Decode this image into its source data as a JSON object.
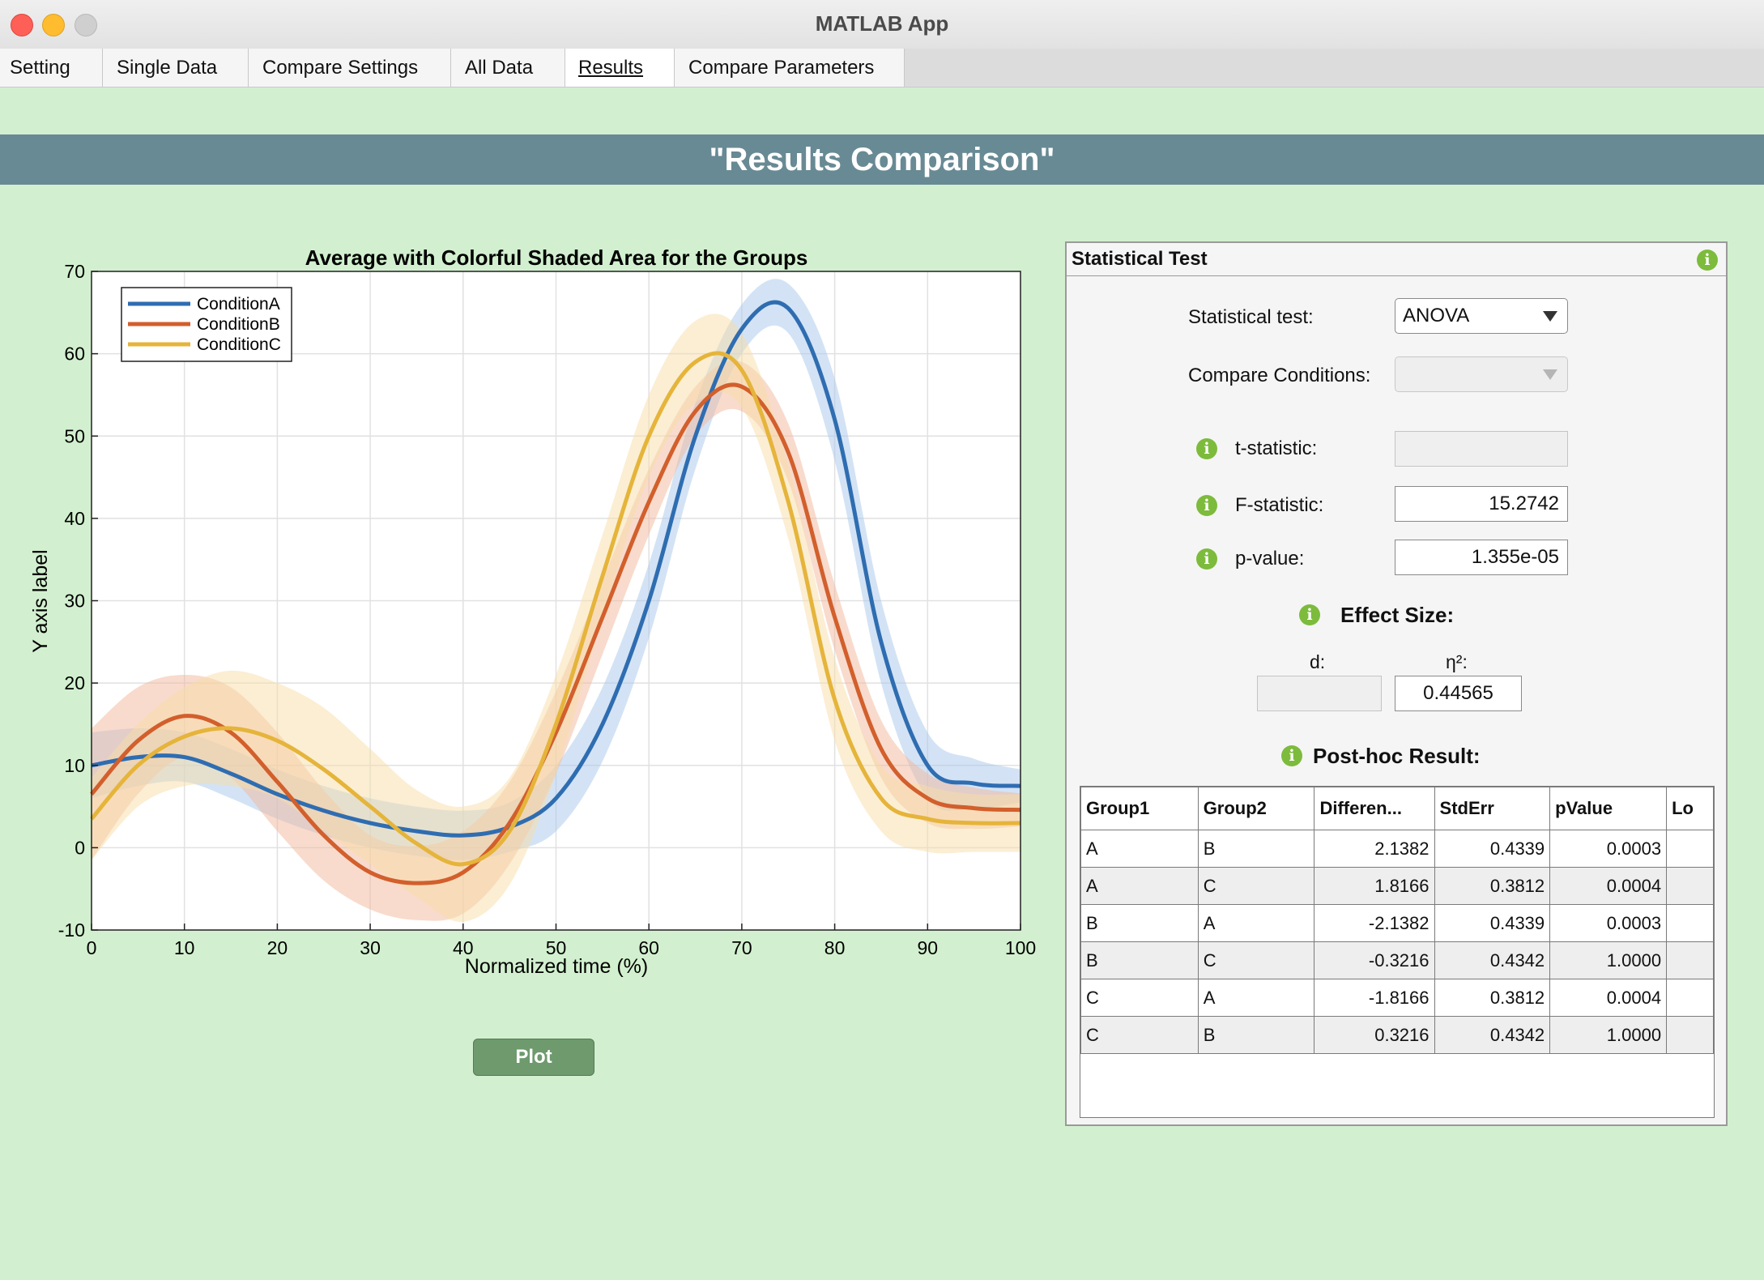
{
  "window": {
    "title": "MATLAB App"
  },
  "tabs": [
    "Setting",
    "Single Data",
    "Compare Settings",
    "All Data",
    "Results",
    "Compare Parameters"
  ],
  "active_tab": "Results",
  "banner": {
    "title": "\"Results Comparison\""
  },
  "chart_data": {
    "type": "line",
    "title": "Average with Colorful Shaded Area for the Groups",
    "xlabel": "Normalized time (%)",
    "ylabel": "Y axis label",
    "xlim": [
      0,
      100
    ],
    "ylim": [
      -10,
      70
    ],
    "xticks": [
      0,
      10,
      20,
      30,
      40,
      50,
      60,
      70,
      80,
      90,
      100
    ],
    "yticks": [
      -10,
      0,
      10,
      20,
      30,
      40,
      50,
      60,
      70
    ],
    "grid": true,
    "legend_position": "top-left",
    "x": [
      0,
      5,
      10,
      15,
      20,
      25,
      30,
      35,
      40,
      45,
      50,
      55,
      60,
      65,
      70,
      75,
      80,
      85,
      90,
      95,
      100
    ],
    "series": [
      {
        "name": "ConditionA",
        "color": "#2f6db1",
        "band_color": "#a8c8ec",
        "values": [
          10,
          11,
          11,
          9,
          6.5,
          4.5,
          3,
          2,
          1.5,
          2.5,
          6,
          15,
          30,
          50,
          63,
          65.5,
          52,
          25,
          10,
          7.8,
          7.5
        ],
        "band_half_width": [
          4,
          3.5,
          3,
          3,
          3,
          3,
          3,
          3,
          3,
          3,
          4,
          4.5,
          4.5,
          4,
          3,
          3,
          5,
          5,
          4,
          3,
          2
        ]
      },
      {
        "name": "ConditionB",
        "color": "#d25f2c",
        "band_color": "#f2b89b",
        "values": [
          6.5,
          13,
          16,
          14,
          8,
          1.5,
          -3,
          -4.3,
          -3,
          3,
          14,
          28,
          42,
          53,
          56,
          48,
          28,
          12,
          6,
          4.8,
          4.6
        ],
        "band_half_width": [
          8,
          6.5,
          5,
          5.5,
          6,
          5.5,
          4.5,
          4.5,
          5,
          5,
          5,
          4.5,
          4,
          3,
          3,
          3.5,
          4,
          3.5,
          3,
          2.5,
          2
        ]
      },
      {
        "name": "ConditionC",
        "color": "#e5b43a",
        "band_color": "#f8dea8",
        "values": [
          3.5,
          10,
          13.5,
          14.5,
          13,
          9.5,
          5,
          0.5,
          -2,
          2,
          15,
          33,
          50,
          59,
          58,
          42,
          18,
          6,
          3.5,
          3,
          3
        ],
        "band_half_width": [
          5,
          5,
          6,
          7,
          7,
          7.5,
          7,
          6.5,
          7,
          6.5,
          6,
          5,
          5,
          5,
          4.5,
          4.5,
          5,
          4,
          4,
          3.5,
          3.5
        ]
      }
    ]
  },
  "plot_button": {
    "label": "Plot"
  },
  "stat_panel": {
    "title": "Statistical Test",
    "test_label": "Statistical test:",
    "test_value": "ANOVA",
    "compare_label": "Compare Conditions:",
    "compare_value": "",
    "t_label": "t-statistic:",
    "t_value": "",
    "f_label": "F-statistic:",
    "f_value": "15.2742",
    "p_label": "p-value:",
    "p_value": "1.355e-05",
    "effect_title": "Effect Size:",
    "d_label": "d:",
    "d_value": "",
    "eta_label": "η²:",
    "eta_value": "0.44565",
    "posthoc_title": "Post-hoc Result:"
  },
  "posthoc_table": {
    "columns": [
      "Group1",
      "Group2",
      "Differen...",
      "StdErr",
      "pValue",
      "Lo"
    ],
    "rows": [
      [
        "A",
        "B",
        "2.1382",
        "0.4339",
        "0.0003",
        ""
      ],
      [
        "A",
        "C",
        "1.8166",
        "0.3812",
        "0.0004",
        ""
      ],
      [
        "B",
        "A",
        "-2.1382",
        "0.4339",
        "0.0003",
        ""
      ],
      [
        "B",
        "C",
        "-0.3216",
        "0.4342",
        "1.0000",
        ""
      ],
      [
        "C",
        "A",
        "-1.8166",
        "0.3812",
        "0.0004",
        ""
      ],
      [
        "C",
        "B",
        "0.3216",
        "0.4342",
        "1.0000",
        ""
      ]
    ]
  }
}
